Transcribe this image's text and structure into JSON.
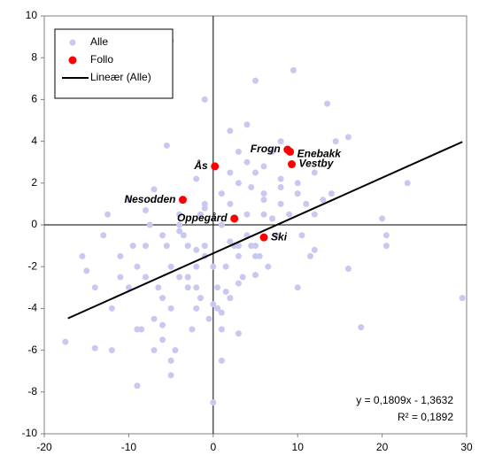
{
  "chart_data": {
    "type": "scatter",
    "xlim": [
      -20,
      30
    ],
    "xticks": [
      -20,
      -10,
      0,
      10,
      20,
      30
    ],
    "ylim": [
      -10,
      10
    ],
    "yticks": [
      -10,
      -8,
      -6,
      -4,
      -2,
      0,
      2,
      4,
      6,
      8,
      10
    ],
    "legend": "upper left",
    "series": [
      {
        "name": "Alle",
        "color": "#c8c8f0",
        "x": [
          -5,
          5,
          9.5,
          13.5,
          -1,
          -5.5,
          14.5,
          16,
          23,
          20,
          20.5,
          20.5,
          29.5,
          16,
          17.5,
          10,
          -17.5,
          -14,
          -12,
          -9,
          -5,
          0,
          -13,
          -12.5,
          -15.5,
          -15,
          -14,
          -10,
          -7,
          -8,
          -11,
          -9,
          -8,
          -6,
          -4,
          -3,
          -2,
          -1,
          1,
          2,
          3,
          4,
          5,
          6,
          7,
          8,
          11,
          12,
          13,
          -10,
          -8,
          -6,
          -5,
          -3,
          -2,
          -1,
          0.5,
          1.5,
          3,
          4.5,
          6,
          7.5,
          9,
          10.5,
          12,
          14,
          -12,
          -9,
          -7,
          -5.5,
          -4,
          -2.5,
          -1.5,
          0.5,
          2,
          3.5,
          5,
          6.5,
          8,
          10,
          11.5,
          -11,
          -9.5,
          -7.5,
          -6,
          -4.5,
          -3,
          -1.5,
          0,
          1,
          2.5,
          4,
          5.5,
          7,
          -8.5,
          -6.5,
          -5,
          -3.5,
          -2,
          -0.5,
          1,
          2,
          3,
          4.5,
          -7,
          -5,
          -3,
          -1,
          1.5,
          3,
          5,
          -4,
          -2,
          0,
          2,
          4,
          6,
          8,
          3,
          1,
          -1,
          2,
          4,
          6,
          8,
          10,
          12,
          1,
          3,
          5,
          7,
          -2,
          -4,
          -6
        ],
        "values": [
          8.8,
          6.9,
          7.4,
          5.8,
          6.0,
          3.8,
          4.0,
          4.2,
          2.0,
          0.3,
          -0.5,
          -1.0,
          -3.5,
          -2.1,
          -4.9,
          -3,
          -5.6,
          -5.9,
          -6,
          -7.7,
          -7.2,
          -8.5,
          -0.5,
          0.5,
          -1.5,
          -2.2,
          -3,
          1.2,
          1.7,
          0.7,
          -1.5,
          -2,
          -1,
          -0.5,
          0.5,
          -1,
          -2,
          -1.5,
          0,
          1,
          2,
          3,
          2.5,
          1.5,
          3.5,
          4,
          1,
          2.5,
          1.2,
          -3,
          -2.5,
          -3.5,
          -2,
          -3,
          -4,
          -1,
          -3,
          -2,
          -1.5,
          -1,
          0.5,
          -0.5,
          0.5,
          -0.5,
          0.5,
          1.5,
          -4,
          -5,
          -4.5,
          -1,
          -2.5,
          -5,
          -3.5,
          -4,
          -3.5,
          -2.5,
          -1,
          -2,
          1,
          1.5,
          -1.5,
          -2.5,
          -1,
          0,
          -5.5,
          -6,
          -2.5,
          0.5,
          -2,
          -5,
          -1,
          -0.5,
          -1.5,
          0.3,
          -5,
          -3,
          -6.5,
          -0.5,
          -3,
          -4.5,
          -6.5,
          2.5,
          -1,
          1.8,
          -6,
          -4,
          -2.5,
          1,
          -3.2,
          3.5,
          -1.5,
          0,
          -1.2,
          -3.8,
          -0.8,
          0.5,
          2.8,
          2.2,
          -5.2,
          1.5,
          0.8,
          4.5,
          4.8,
          1.2,
          1.8,
          2,
          -1.2,
          -4.2,
          -2.8,
          -2.4,
          0.3,
          2.2,
          -0.3,
          -4.8
        ]
      },
      {
        "name": "Follo",
        "color": "#ff0000",
        "x": [
          8.8,
          9.1,
          9.3,
          0.2,
          -3.6,
          2.5,
          6.0
        ],
        "values": [
          3.6,
          3.5,
          2.9,
          2.8,
          1.2,
          0.3,
          -0.6
        ],
        "point_labels": [
          "Frogn",
          "Enebakk",
          "Vestby",
          "Ås",
          "Nesodden",
          "Oppegård",
          "Ski"
        ]
      },
      {
        "name": "Lineær (Alle)",
        "color": "#000000",
        "line": true,
        "x": [
          -17.2,
          29.5
        ],
        "values": [
          -4.475,
          3.973
        ]
      }
    ],
    "equation": "y = 0,1809x - 1,3632",
    "r_squared": "R² = 0,1892"
  }
}
